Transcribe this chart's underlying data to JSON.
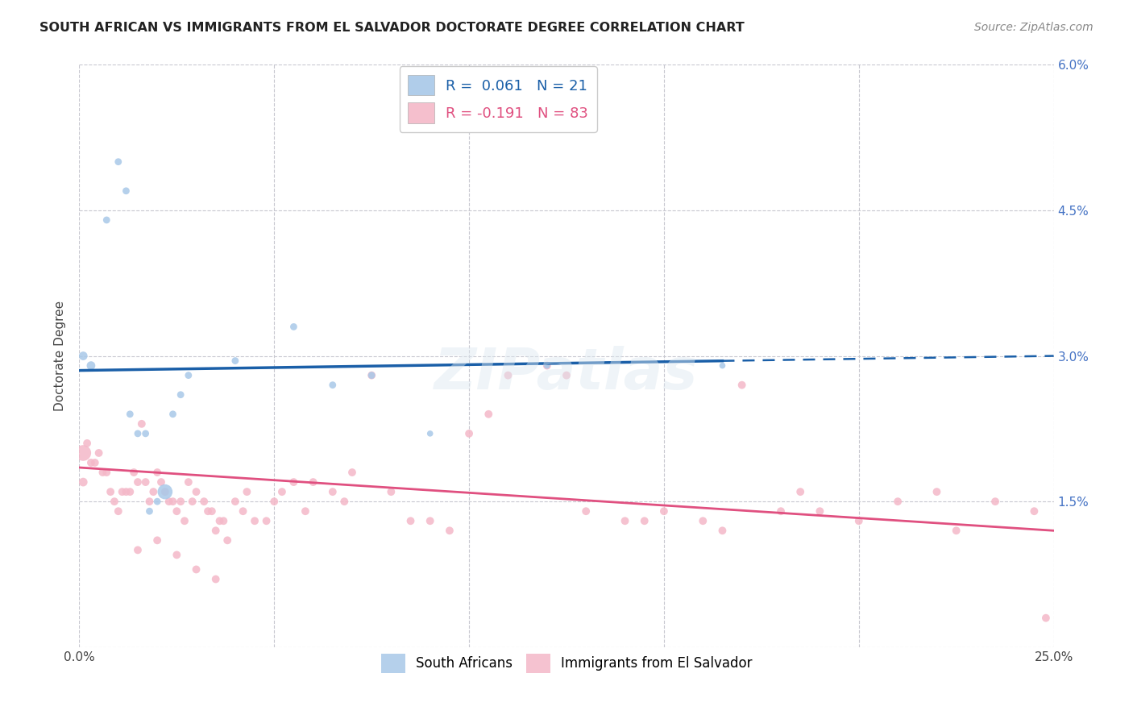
{
  "title": "SOUTH AFRICAN VS IMMIGRANTS FROM EL SALVADOR DOCTORATE DEGREE CORRELATION CHART",
  "source": "Source: ZipAtlas.com",
  "ylabel_label": "Doctorate Degree",
  "x_min": 0.0,
  "x_max": 0.25,
  "y_min": 0.0,
  "y_max": 0.06,
  "x_ticks": [
    0.0,
    0.05,
    0.1,
    0.15,
    0.2,
    0.25
  ],
  "x_tick_labels": [
    "0.0%",
    "",
    "",
    "",
    "",
    "25.0%"
  ],
  "y_ticks": [
    0.0,
    0.015,
    0.03,
    0.045,
    0.06
  ],
  "y_tick_labels": [
    "",
    "1.5%",
    "3.0%",
    "4.5%",
    "6.0%"
  ],
  "south_african_R": 0.061,
  "south_african_N": 21,
  "el_salvador_R": -0.191,
  "el_salvador_N": 83,
  "south_african_color": "#a8c8e8",
  "el_salvador_color": "#f4b8c8",
  "south_african_line_color": "#1a5fa8",
  "el_salvador_line_color": "#e05080",
  "background_color": "#ffffff",
  "grid_color": "#c8c8d0",
  "south_african_x": [
    0.001,
    0.003,
    0.007,
    0.01,
    0.012,
    0.013,
    0.015,
    0.017,
    0.018,
    0.02,
    0.022,
    0.024,
    0.026,
    0.028,
    0.04,
    0.055,
    0.065,
    0.075,
    0.09,
    0.12,
    0.165
  ],
  "south_african_y": [
    0.03,
    0.029,
    0.044,
    0.05,
    0.047,
    0.024,
    0.022,
    0.022,
    0.014,
    0.015,
    0.016,
    0.024,
    0.026,
    0.028,
    0.0295,
    0.033,
    0.027,
    0.028,
    0.022,
    0.029,
    0.029
  ],
  "south_african_size": [
    60,
    60,
    40,
    40,
    40,
    40,
    40,
    40,
    40,
    40,
    180,
    40,
    40,
    40,
    40,
    40,
    40,
    40,
    30,
    30,
    30
  ],
  "el_salvador_x": [
    0.001,
    0.001,
    0.002,
    0.003,
    0.004,
    0.005,
    0.006,
    0.007,
    0.008,
    0.009,
    0.01,
    0.011,
    0.012,
    0.013,
    0.014,
    0.015,
    0.016,
    0.017,
    0.018,
    0.019,
    0.02,
    0.021,
    0.022,
    0.023,
    0.024,
    0.025,
    0.026,
    0.027,
    0.028,
    0.029,
    0.03,
    0.032,
    0.033,
    0.034,
    0.035,
    0.036,
    0.037,
    0.038,
    0.04,
    0.042,
    0.043,
    0.045,
    0.048,
    0.05,
    0.052,
    0.055,
    0.058,
    0.06,
    0.065,
    0.068,
    0.07,
    0.075,
    0.08,
    0.085,
    0.09,
    0.095,
    0.1,
    0.105,
    0.11,
    0.12,
    0.125,
    0.13,
    0.14,
    0.145,
    0.15,
    0.16,
    0.165,
    0.17,
    0.18,
    0.185,
    0.19,
    0.2,
    0.21,
    0.22,
    0.225,
    0.235,
    0.245,
    0.248,
    0.015,
    0.02,
    0.025,
    0.03,
    0.035
  ],
  "el_salvador_y": [
    0.02,
    0.017,
    0.021,
    0.019,
    0.019,
    0.02,
    0.018,
    0.018,
    0.016,
    0.015,
    0.014,
    0.016,
    0.016,
    0.016,
    0.018,
    0.017,
    0.023,
    0.017,
    0.015,
    0.016,
    0.018,
    0.017,
    0.016,
    0.015,
    0.015,
    0.014,
    0.015,
    0.013,
    0.017,
    0.015,
    0.016,
    0.015,
    0.014,
    0.014,
    0.012,
    0.013,
    0.013,
    0.011,
    0.015,
    0.014,
    0.016,
    0.013,
    0.013,
    0.015,
    0.016,
    0.017,
    0.014,
    0.017,
    0.016,
    0.015,
    0.018,
    0.028,
    0.016,
    0.013,
    0.013,
    0.012,
    0.022,
    0.024,
    0.028,
    0.029,
    0.028,
    0.014,
    0.013,
    0.013,
    0.014,
    0.013,
    0.012,
    0.027,
    0.014,
    0.016,
    0.014,
    0.013,
    0.015,
    0.016,
    0.012,
    0.015,
    0.014,
    0.003,
    0.01,
    0.011,
    0.0095,
    0.008,
    0.007
  ],
  "el_salvador_size": [
    200,
    60,
    50,
    50,
    50,
    50,
    50,
    50,
    50,
    50,
    50,
    50,
    50,
    50,
    50,
    50,
    50,
    50,
    50,
    50,
    50,
    50,
    50,
    50,
    50,
    50,
    50,
    50,
    50,
    50,
    50,
    50,
    50,
    50,
    50,
    50,
    50,
    50,
    50,
    50,
    50,
    50,
    50,
    50,
    50,
    50,
    50,
    50,
    50,
    50,
    50,
    50,
    50,
    50,
    50,
    50,
    50,
    50,
    50,
    50,
    50,
    50,
    50,
    50,
    50,
    50,
    50,
    50,
    50,
    50,
    50,
    50,
    50,
    50,
    50,
    50,
    50,
    50,
    50,
    50,
    50,
    50,
    50
  ]
}
